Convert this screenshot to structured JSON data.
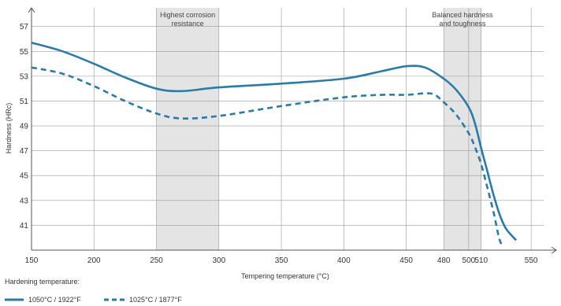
{
  "chart_data": {
    "type": "line",
    "xlabel": "Tempering temperature (°C)",
    "ylabel": "Hardness (HRc)",
    "xlim": [
      150,
      560
    ],
    "ylim": [
      39,
      58.5
    ],
    "x_ticks": [
      150,
      200,
      250,
      300,
      350,
      400,
      450,
      480,
      500,
      510,
      550
    ],
    "y_ticks": [
      41,
      43,
      45,
      47,
      49,
      51,
      53,
      55,
      57
    ],
    "grid": true,
    "bands": [
      {
        "label_line1": "Highest corrosion",
        "label_line2": "resistance",
        "from": 250,
        "to": 300,
        "color": "#e4e4e4"
      },
      {
        "label_line1": "Balanced hardness",
        "label_line2": "and toughness",
        "from": 480,
        "to": 510,
        "color": "#e4e4e4"
      }
    ],
    "legend_title": "Hardening temperature:",
    "legend_placement": "bottom-left",
    "series": [
      {
        "name": "1050°C / 1922°F",
        "style": "solid",
        "color": "#2a7ba8",
        "points": [
          [
            150,
            55.7
          ],
          [
            175,
            55.0
          ],
          [
            200,
            54.0
          ],
          [
            225,
            52.9
          ],
          [
            250,
            52.0
          ],
          [
            270,
            51.8
          ],
          [
            300,
            52.1
          ],
          [
            350,
            52.4
          ],
          [
            400,
            52.8
          ],
          [
            430,
            53.4
          ],
          [
            450,
            53.8
          ],
          [
            465,
            53.7
          ],
          [
            480,
            52.8
          ],
          [
            490,
            51.9
          ],
          [
            500,
            50.5
          ],
          [
            505,
            49.2
          ],
          [
            510,
            47.2
          ],
          [
            515,
            45.3
          ],
          [
            520,
            43.4
          ],
          [
            525,
            41.8
          ],
          [
            530,
            40.7
          ],
          [
            538,
            39.8
          ]
        ]
      },
      {
        "name": "1025°C / 1877°F",
        "style": "dashed",
        "color": "#2a7ba8",
        "points": [
          [
            150,
            53.7
          ],
          [
            175,
            53.2
          ],
          [
            200,
            52.2
          ],
          [
            225,
            51.0
          ],
          [
            250,
            50.0
          ],
          [
            270,
            49.6
          ],
          [
            300,
            49.8
          ],
          [
            350,
            50.6
          ],
          [
            400,
            51.3
          ],
          [
            430,
            51.5
          ],
          [
            450,
            51.5
          ],
          [
            470,
            51.6
          ],
          [
            480,
            50.9
          ],
          [
            490,
            49.9
          ],
          [
            500,
            48.4
          ],
          [
            505,
            47.3
          ],
          [
            510,
            45.9
          ],
          [
            515,
            44.0
          ],
          [
            520,
            42.0
          ],
          [
            524,
            40.1
          ],
          [
            526,
            39.5
          ]
        ]
      }
    ]
  }
}
